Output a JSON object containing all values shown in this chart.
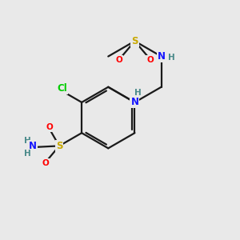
{
  "background_color": "#e9e9e9",
  "bond_color": "#1a1a1a",
  "bond_width": 1.6,
  "atom_colors": {
    "C": "#1a1a1a",
    "N": "#1515ff",
    "S": "#c8a800",
    "O": "#ff0000",
    "Cl": "#00cc00",
    "H": "#4a8a8a"
  },
  "font_size": 8.5,
  "figsize": [
    3.0,
    3.0
  ],
  "dpi": 100
}
